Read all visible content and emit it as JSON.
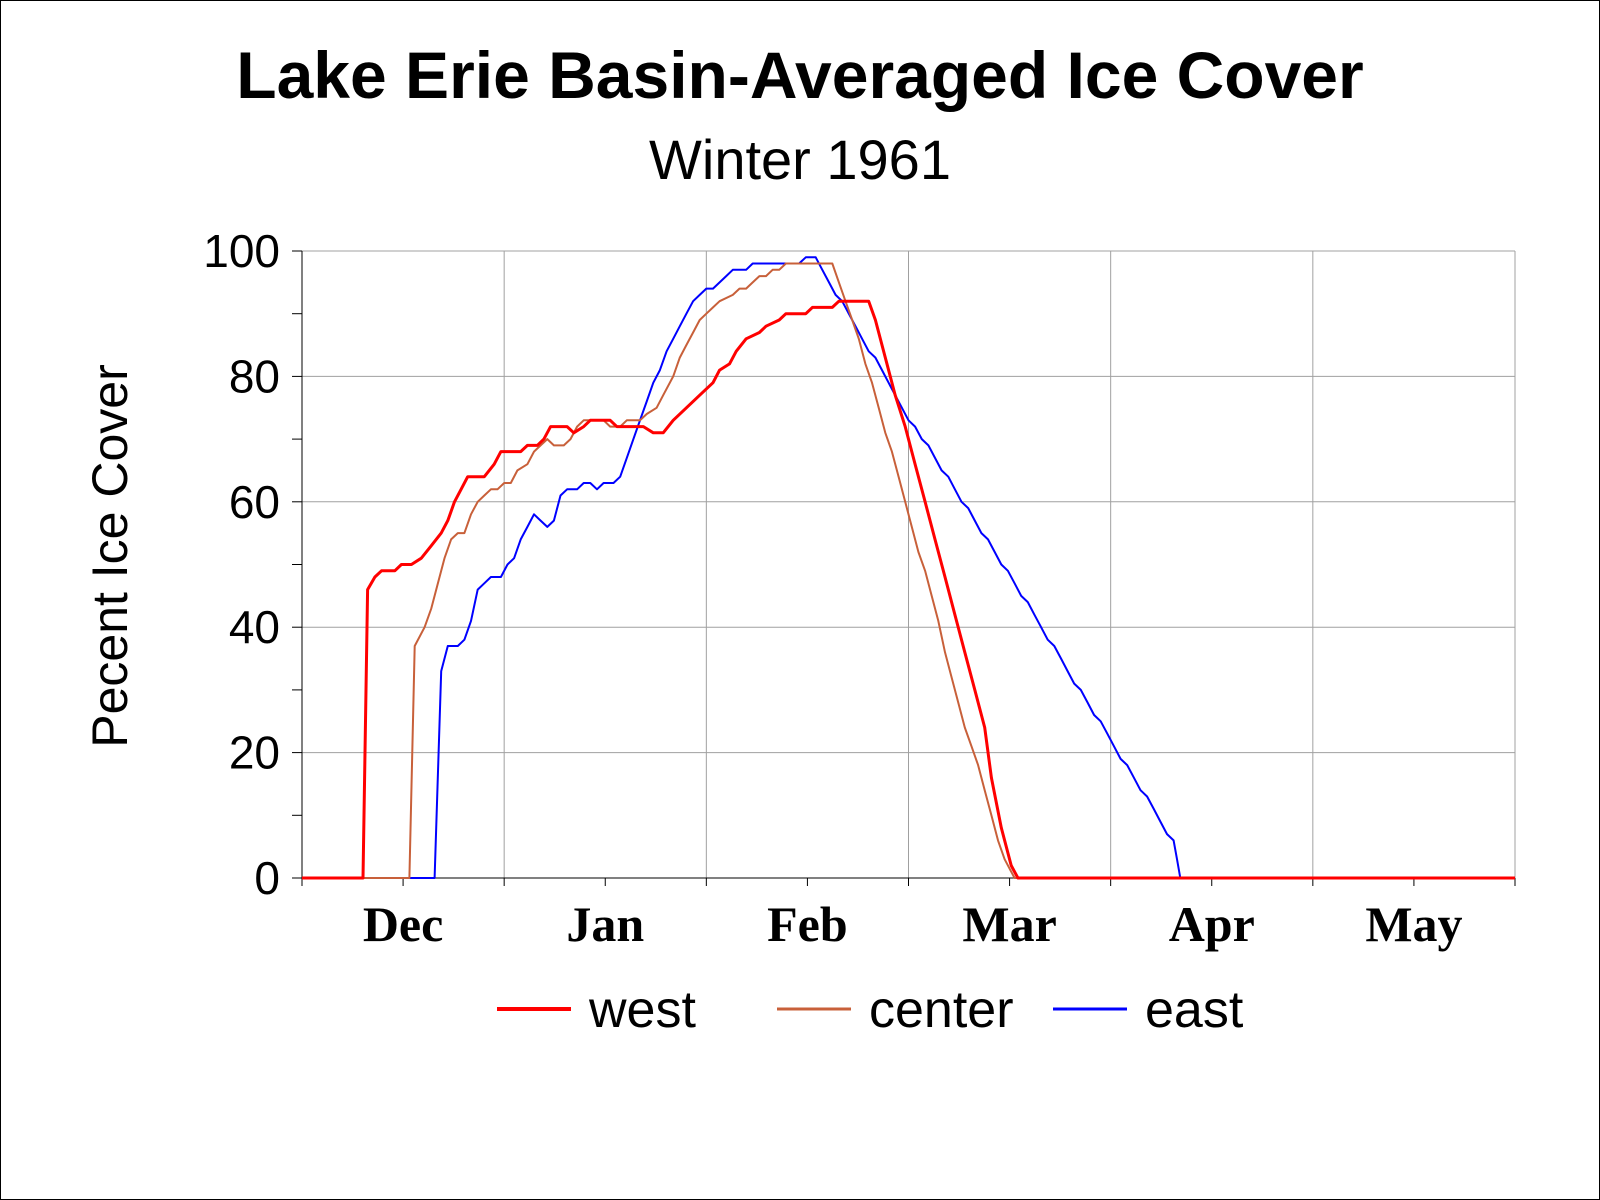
{
  "chart_data": {
    "type": "line",
    "title": "Lake Erie Basin-Averaged Ice Cover",
    "subtitle": "Winter 1961",
    "xlabel": "",
    "ylabel": "Pecent Ice Cover",
    "ylim": [
      0,
      100
    ],
    "yticks": [
      "0",
      "20",
      "40",
      "60",
      "80",
      "100"
    ],
    "x_month_labels": [
      "Dec",
      "Jan",
      "Feb",
      "Mar",
      "Apr",
      "May"
    ],
    "x_axis_note": "x values are days counted from the start of the plotted season (Dec label centered near day 10)",
    "xlim": [
      0,
      183
    ],
    "grid": true,
    "legend_position": "bottom",
    "series": [
      {
        "name": "west",
        "color": "#ff0000",
        "stroke_width": 3,
        "points": [
          [
            0,
            0
          ],
          [
            9.2,
            0
          ],
          [
            9.9,
            46
          ],
          [
            11,
            48
          ],
          [
            12,
            49
          ],
          [
            14,
            49
          ],
          [
            15,
            50
          ],
          [
            16.5,
            50
          ],
          [
            18,
            51
          ],
          [
            19.5,
            53
          ],
          [
            21,
            55
          ],
          [
            22,
            57
          ],
          [
            23,
            60
          ],
          [
            24,
            62
          ],
          [
            25,
            64
          ],
          [
            27.5,
            64
          ],
          [
            29,
            66
          ],
          [
            30,
            68
          ],
          [
            33,
            68
          ],
          [
            34,
            69
          ],
          [
            35.5,
            69
          ],
          [
            36.5,
            70
          ],
          [
            37.5,
            72
          ],
          [
            40,
            72
          ],
          [
            41,
            71
          ],
          [
            42.5,
            72
          ],
          [
            43.5,
            73
          ],
          [
            46.5,
            73
          ],
          [
            47.5,
            72
          ],
          [
            51.5,
            72
          ],
          [
            53,
            71
          ],
          [
            54.5,
            71
          ],
          [
            56,
            73
          ],
          [
            58,
            75
          ],
          [
            60,
            77
          ],
          [
            62,
            79
          ],
          [
            63,
            81
          ],
          [
            64.5,
            82
          ],
          [
            65.5,
            84
          ],
          [
            67,
            86
          ],
          [
            69,
            87
          ],
          [
            70,
            88
          ],
          [
            72,
            89
          ],
          [
            73,
            90
          ],
          [
            76,
            90
          ],
          [
            77,
            91
          ],
          [
            80,
            91
          ],
          [
            81,
            92
          ],
          [
            85.5,
            92
          ],
          [
            86.5,
            89
          ],
          [
            88,
            83
          ],
          [
            89.5,
            77
          ],
          [
            91,
            72
          ],
          [
            92.5,
            66
          ],
          [
            94,
            60
          ],
          [
            95.5,
            54
          ],
          [
            97,
            48
          ],
          [
            98.5,
            42
          ],
          [
            100,
            36
          ],
          [
            101.5,
            30
          ],
          [
            103,
            24
          ],
          [
            104,
            16
          ],
          [
            105.5,
            8
          ],
          [
            107,
            2
          ],
          [
            108,
            0
          ],
          [
            183,
            0
          ]
        ]
      },
      {
        "name": "center",
        "color": "#c8603a",
        "stroke_width": 2,
        "points": [
          [
            0,
            0
          ],
          [
            16.2,
            0
          ],
          [
            17,
            37
          ],
          [
            18.5,
            40
          ],
          [
            19.5,
            43
          ],
          [
            20.5,
            47
          ],
          [
            21.5,
            51
          ],
          [
            22.5,
            54
          ],
          [
            23.5,
            55
          ],
          [
            24.5,
            55
          ],
          [
            25.5,
            58
          ],
          [
            26.5,
            60
          ],
          [
            27.5,
            61
          ],
          [
            28.5,
            62
          ],
          [
            29.5,
            62
          ],
          [
            30.5,
            63
          ],
          [
            31.5,
            63
          ],
          [
            32.5,
            65
          ],
          [
            34,
            66
          ],
          [
            35,
            68
          ],
          [
            36,
            69
          ],
          [
            37,
            70
          ],
          [
            38,
            69
          ],
          [
            39.5,
            69
          ],
          [
            40.5,
            70
          ],
          [
            41.5,
            72
          ],
          [
            42.5,
            73
          ],
          [
            45.5,
            73
          ],
          [
            46.5,
            72
          ],
          [
            48,
            72
          ],
          [
            49,
            73
          ],
          [
            51,
            73
          ],
          [
            52,
            74
          ],
          [
            53.5,
            75
          ],
          [
            54.5,
            77
          ],
          [
            56,
            80
          ],
          [
            57,
            83
          ],
          [
            58,
            85
          ],
          [
            59,
            87
          ],
          [
            60,
            89
          ],
          [
            61,
            90
          ],
          [
            62,
            91
          ],
          [
            63,
            92
          ],
          [
            65,
            93
          ],
          [
            66,
            94
          ],
          [
            67,
            94
          ],
          [
            68,
            95
          ],
          [
            69,
            96
          ],
          [
            70,
            96
          ],
          [
            71,
            97
          ],
          [
            72,
            97
          ],
          [
            73,
            98
          ],
          [
            80,
            98
          ],
          [
            81,
            95
          ],
          [
            82,
            92
          ],
          [
            83,
            89
          ],
          [
            84,
            86
          ],
          [
            85,
            82
          ],
          [
            86,
            79
          ],
          [
            87,
            75
          ],
          [
            88,
            71
          ],
          [
            89,
            68
          ],
          [
            90,
            64
          ],
          [
            91,
            60
          ],
          [
            92,
            56
          ],
          [
            93,
            52
          ],
          [
            94,
            49
          ],
          [
            95,
            45
          ],
          [
            96,
            41
          ],
          [
            97,
            36
          ],
          [
            98,
            32
          ],
          [
            99,
            28
          ],
          [
            100,
            24
          ],
          [
            101,
            21
          ],
          [
            102,
            18
          ],
          [
            103,
            14
          ],
          [
            104,
            10
          ],
          [
            105,
            6
          ],
          [
            106,
            3
          ],
          [
            107,
            1
          ],
          [
            107.5,
            0
          ],
          [
            183,
            0
          ]
        ]
      },
      {
        "name": "east",
        "color": "#0000ff",
        "stroke_width": 2,
        "points": [
          [
            0,
            0
          ],
          [
            20,
            0
          ],
          [
            21,
            33
          ],
          [
            22,
            37
          ],
          [
            23.5,
            37
          ],
          [
            24.5,
            38
          ],
          [
            25.5,
            41
          ],
          [
            26.5,
            46
          ],
          [
            27.5,
            47
          ],
          [
            28.5,
            48
          ],
          [
            30,
            48
          ],
          [
            31,
            50
          ],
          [
            32,
            51
          ],
          [
            33,
            54
          ],
          [
            34,
            56
          ],
          [
            35,
            58
          ],
          [
            36,
            57
          ],
          [
            37,
            56
          ],
          [
            38,
            57
          ],
          [
            39,
            61
          ],
          [
            40,
            62
          ],
          [
            41.5,
            62
          ],
          [
            42.5,
            63
          ],
          [
            43.5,
            63
          ],
          [
            44.5,
            62
          ],
          [
            45.5,
            63
          ],
          [
            47,
            63
          ],
          [
            48,
            64
          ],
          [
            49,
            67
          ],
          [
            50,
            70
          ],
          [
            51,
            73
          ],
          [
            52,
            76
          ],
          [
            53,
            79
          ],
          [
            54,
            81
          ],
          [
            55,
            84
          ],
          [
            56,
            86
          ],
          [
            57,
            88
          ],
          [
            58,
            90
          ],
          [
            59,
            92
          ],
          [
            60,
            93
          ],
          [
            61,
            94
          ],
          [
            62,
            94
          ],
          [
            63,
            95
          ],
          [
            64,
            96
          ],
          [
            65,
            97
          ],
          [
            66,
            97
          ],
          [
            67,
            97
          ],
          [
            68,
            98
          ],
          [
            75,
            98
          ],
          [
            76,
            99
          ],
          [
            77.5,
            99
          ],
          [
            78.5,
            97
          ],
          [
            79.5,
            95
          ],
          [
            80.5,
            93
          ],
          [
            81.5,
            92
          ],
          [
            82.5,
            90
          ],
          [
            83.5,
            88
          ],
          [
            84.5,
            86
          ],
          [
            85.5,
            84
          ],
          [
            86.5,
            83
          ],
          [
            87.5,
            81
          ],
          [
            88.5,
            79
          ],
          [
            89.5,
            77
          ],
          [
            90.5,
            75
          ],
          [
            91.5,
            73
          ],
          [
            92.5,
            72
          ],
          [
            93.5,
            70
          ],
          [
            94.5,
            69
          ],
          [
            95.5,
            67
          ],
          [
            96.5,
            65
          ],
          [
            97.5,
            64
          ],
          [
            98.5,
            62
          ],
          [
            99.5,
            60
          ],
          [
            100.5,
            59
          ],
          [
            101.5,
            57
          ],
          [
            102.5,
            55
          ],
          [
            103.5,
            54
          ],
          [
            104.5,
            52
          ],
          [
            105.5,
            50
          ],
          [
            106.5,
            49
          ],
          [
            107.5,
            47
          ],
          [
            108.5,
            45
          ],
          [
            109.5,
            44
          ],
          [
            110.5,
            42
          ],
          [
            111.5,
            40
          ],
          [
            112.5,
            38
          ],
          [
            113.5,
            37
          ],
          [
            114.5,
            35
          ],
          [
            115.5,
            33
          ],
          [
            116.5,
            31
          ],
          [
            117.5,
            30
          ],
          [
            118.5,
            28
          ],
          [
            119.5,
            26
          ],
          [
            120.5,
            25
          ],
          [
            121.5,
            23
          ],
          [
            122.5,
            21
          ],
          [
            123.5,
            19
          ],
          [
            124.5,
            18
          ],
          [
            125.5,
            16
          ],
          [
            126.5,
            14
          ],
          [
            127.5,
            13
          ],
          [
            128.5,
            11
          ],
          [
            129.5,
            9
          ],
          [
            130.5,
            7
          ],
          [
            131.5,
            6
          ],
          [
            132,
            3
          ],
          [
            132.5,
            0
          ],
          [
            183,
            0
          ]
        ]
      }
    ]
  }
}
